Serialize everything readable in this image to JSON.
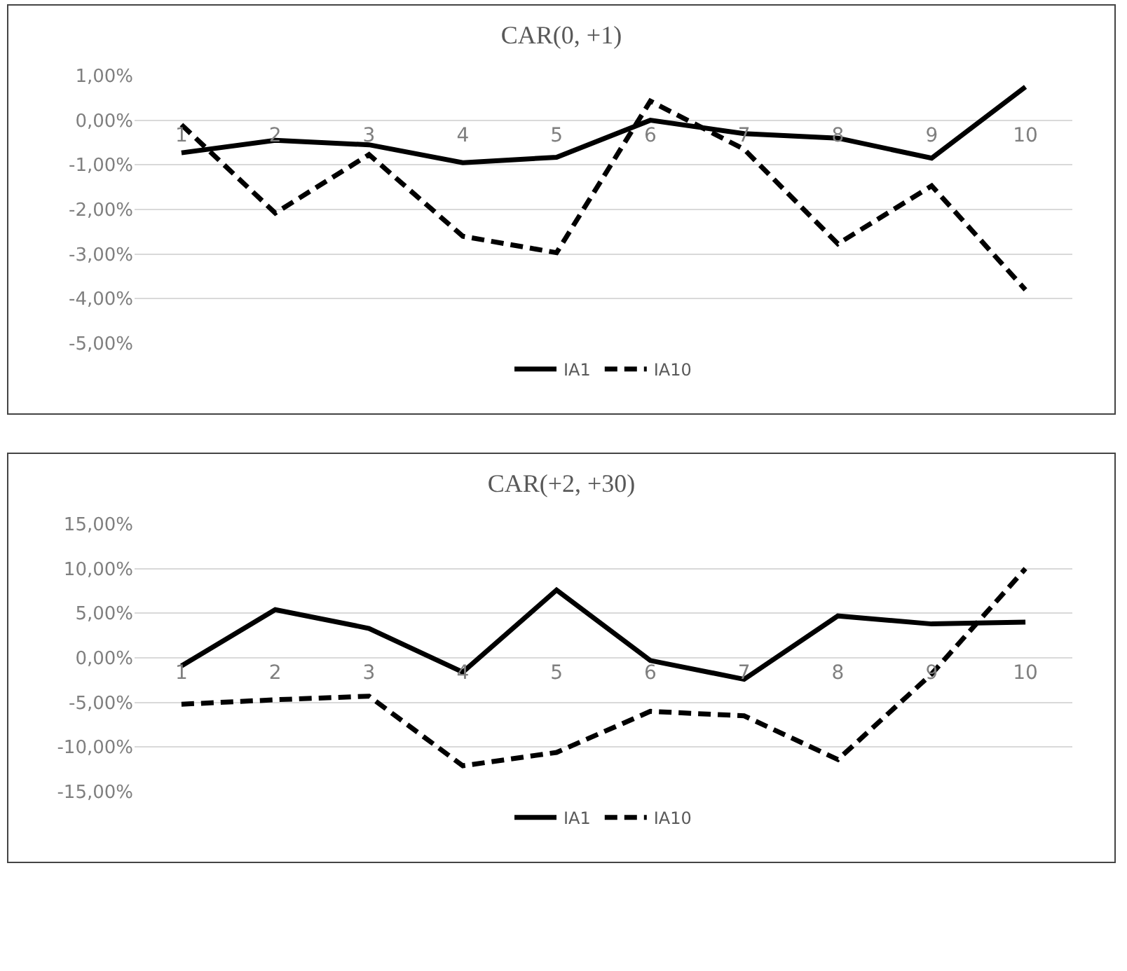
{
  "chart_data": [
    {
      "type": "line",
      "title": "CAR(0, +1)",
      "categories": [
        "1",
        "2",
        "3",
        "4",
        "5",
        "6",
        "7",
        "8",
        "9",
        "10"
      ],
      "series": [
        {
          "name": "IA1",
          "color": "#000000",
          "line_style": "solid",
          "values": [
            -0.73,
            -0.45,
            -0.55,
            -0.95,
            -0.83,
            0.0,
            -0.3,
            -0.4,
            -0.85,
            0.75
          ]
        },
        {
          "name": "IA10",
          "color": "#000000",
          "line_style": "dashed",
          "values": [
            -0.1,
            -2.08,
            -0.77,
            -2.6,
            -2.97,
            0.43,
            -0.65,
            -2.77,
            -1.47,
            -3.8
          ]
        }
      ],
      "ylim": [
        -5,
        1
      ],
      "yticks": [
        {
          "value": -5,
          "label": "-5,00%"
        },
        {
          "value": -4,
          "label": "-4,00%"
        },
        {
          "value": -3,
          "label": "-3,00%"
        },
        {
          "value": -2,
          "label": "-2,00%"
        },
        {
          "value": -1,
          "label": "-1,00%"
        },
        {
          "value": 0,
          "label": "0,00%"
        },
        {
          "value": 1,
          "label": "1,00%"
        }
      ],
      "grid": "y",
      "legend": "bottom"
    },
    {
      "type": "line",
      "title": "CAR(+2, +30)",
      "categories": [
        "1",
        "2",
        "3",
        "4",
        "5",
        "6",
        "7",
        "8",
        "9",
        "10"
      ],
      "series": [
        {
          "name": "IA1",
          "color": "#000000",
          "line_style": "solid",
          "values": [
            -0.9,
            5.4,
            3.3,
            -1.6,
            7.6,
            -0.3,
            -2.4,
            4.7,
            3.8,
            4.0
          ]
        },
        {
          "name": "IA10",
          "color": "#000000",
          "line_style": "dashed",
          "values": [
            -5.2,
            -4.7,
            -4.3,
            -12.1,
            -10.6,
            -6.0,
            -6.5,
            -11.4,
            -1.8,
            10.0
          ]
        }
      ],
      "ylim": [
        -15,
        15
      ],
      "yticks": [
        {
          "value": -15,
          "label": "-15,00%"
        },
        {
          "value": -10,
          "label": "-10,00%"
        },
        {
          "value": -5,
          "label": "-5,00%"
        },
        {
          "value": 0,
          "label": "0,00%"
        },
        {
          "value": 5,
          "label": "5,00%"
        },
        {
          "value": 10,
          "label": "10,00%"
        },
        {
          "value": 15,
          "label": "15,00%"
        }
      ],
      "grid": "y",
      "legend": "bottom"
    }
  ]
}
